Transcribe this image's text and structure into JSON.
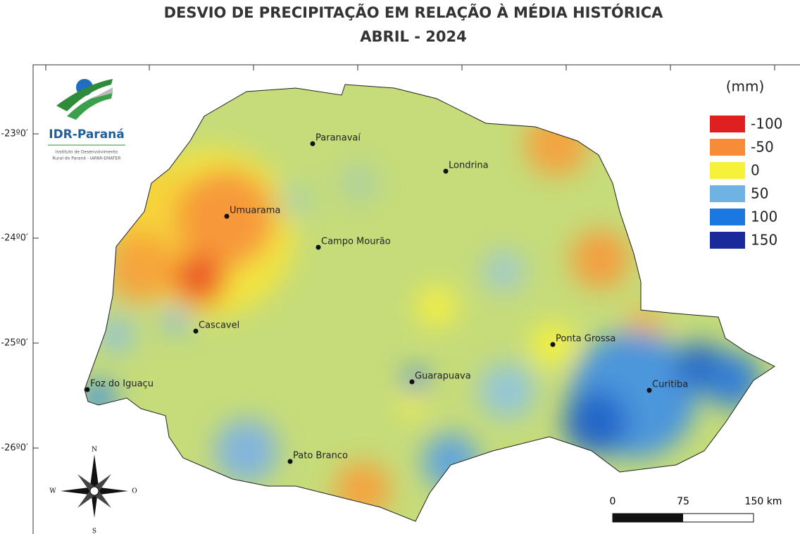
{
  "header": {
    "title": [
      "DESVIO DE PRECIPITAÇÃO EM RELAÇÃO À MÉDIA HISTÓRICA",
      "ABRIL - 2024"
    ]
  },
  "logo": {
    "name": "IDR-Paraná",
    "subtitle": [
      "Instituto de Desenvolvimento",
      "Rural do Paraná - IAPAR-EMATER"
    ]
  },
  "lat_labels": [
    "-23º0′",
    "-24º0′",
    "-25º0′",
    "-26º0′"
  ],
  "cities": [
    "Paranavaí",
    "Londrina",
    "Umuarama",
    "Campo Mourão",
    "Cascavel",
    "Ponta Grossa",
    "Guarapuava",
    "Foz do Iguaçu",
    "Curitiba",
    "Pato Branco"
  ],
  "legend": {
    "title": "(mm)",
    "items": [
      {
        "value": -100,
        "color": "#e02020"
      },
      {
        "value": -50,
        "color": "#f78b38"
      },
      {
        "value": 0,
        "color": "#f6f23a"
      },
      {
        "value": 50,
        "color": "#6eb3e4"
      },
      {
        "value": 100,
        "color": "#1a78e0"
      },
      {
        "value": 150,
        "color": "#1b2a9a"
      }
    ]
  },
  "compass": [
    "N",
    "S",
    "W",
    "O"
  ],
  "scale_bar": [
    "0",
    "75",
    "150 km"
  ]
}
